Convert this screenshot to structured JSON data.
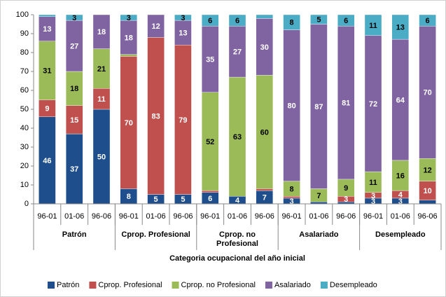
{
  "chart_data": {
    "type": "stacked_bar",
    "x_label": "Categoria ocupacional  del año inicial",
    "categories": [
      "96-01",
      "01-06",
      "96-06",
      "96-01",
      "01-06",
      "96-06",
      "96-01",
      "01-06",
      "96-06",
      "96-01",
      "01-06",
      "96-06",
      "96-01",
      "01-06",
      "96-06"
    ],
    "groups": [
      "Patrón",
      "Cprop. Profesional",
      "Cprop. no Profesional",
      "Asalariado",
      "Desempleado"
    ],
    "series": [
      {
        "name": "Patrón",
        "color": "#1f4e8c",
        "values": [
          46,
          37,
          50,
          8,
          5,
          5,
          6,
          4,
          7,
          3,
          1,
          1,
          3,
          3,
          2
        ]
      },
      {
        "name": "Cprop. Profesional",
        "color": "#c0504d",
        "values": [
          9,
          15,
          11,
          70,
          83,
          79,
          1,
          0,
          1,
          1,
          0,
          3,
          3,
          4,
          10
        ]
      },
      {
        "name": "Cprop.  no Profesional",
        "color": "#9bbb59",
        "values": [
          31,
          18,
          21,
          1,
          0,
          0,
          52,
          63,
          60,
          8,
          7,
          9,
          11,
          16,
          12
        ]
      },
      {
        "name": "Asalariado",
        "color": "#8064a2",
        "values": [
          13,
          27,
          18,
          18,
          12,
          13,
          35,
          27,
          30,
          80,
          87,
          81,
          72,
          64,
          70
        ]
      },
      {
        "name": "Desempleado",
        "color": "#4bacc6",
        "values": [
          1,
          3,
          0,
          3,
          0,
          3,
          6,
          6,
          2,
          8,
          5,
          6,
          11,
          13,
          6
        ]
      }
    ],
    "ylim": [
      0,
      100
    ],
    "yticks": [
      0,
      10,
      20,
      30,
      40,
      50,
      60,
      70,
      80,
      90,
      100
    ],
    "grid": false,
    "legend": "bottom"
  }
}
